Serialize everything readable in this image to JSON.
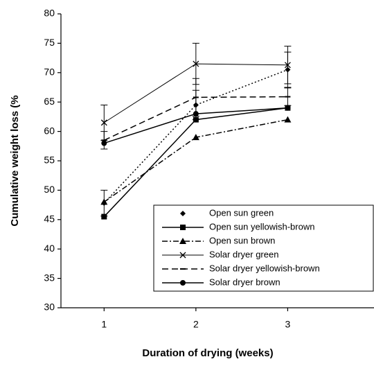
{
  "chart_data": {
    "type": "line",
    "x_label": "Duration of drying (weeks)",
    "y_label": "Cumulative weight loss (%",
    "x": [
      1,
      2,
      3
    ],
    "xlim": [
      0.53,
      3.94
    ],
    "xticks": [
      1,
      2,
      3
    ],
    "ylim": [
      30,
      80
    ],
    "yticks": [
      30,
      35,
      40,
      45,
      50,
      55,
      60,
      65,
      70,
      75,
      80
    ],
    "grid": false,
    "legend": "lower right",
    "series": [
      {
        "name": "Open sun green",
        "color": "#000000",
        "marker": "diamond",
        "dash": "dotted",
        "values": [
          47.8,
          64.5,
          70.5
        ],
        "errors": [
          2.2,
          2.5,
          3.0
        ]
      },
      {
        "name": "Open sun yellowish-brown",
        "color": "#000000",
        "marker": "square",
        "dash": "solid",
        "values": [
          45.5,
          62,
          64
        ]
      },
      {
        "name": "Open sun brown",
        "color": "#000000",
        "marker": "triangle",
        "dash": "dashdot",
        "values": [
          48,
          59,
          62
        ]
      },
      {
        "name": "Solar dryer green",
        "color": "#000000",
        "marker": "x",
        "dash": "thin",
        "values": [
          61.5,
          71.5,
          71.3
        ],
        "errors": [
          3,
          3.5,
          3.2
        ]
      },
      {
        "name": "Solar dryer yellowish-brown",
        "color": "#000000",
        "marker": "dash",
        "dash": "dashed",
        "values": [
          58.5,
          65.8,
          65.9
        ],
        "errors": [
          1.5,
          3.2,
          1.5
        ]
      },
      {
        "name": "Solar dryer brown",
        "color": "#000000",
        "marker": "circle",
        "dash": "solid",
        "values": [
          58,
          63,
          64
        ]
      }
    ]
  }
}
